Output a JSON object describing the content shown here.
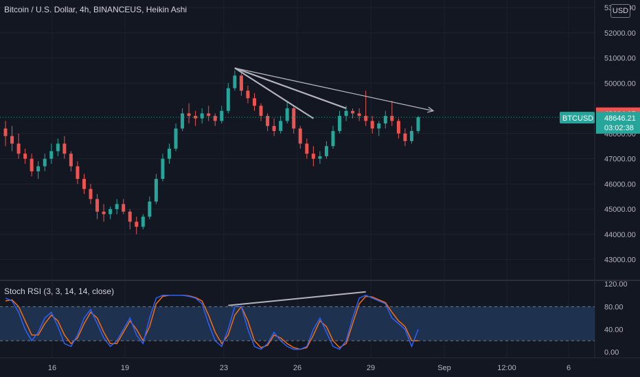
{
  "header": {
    "title": "Bitcoin / U.S. Dollar, 4h, BINANCEUS, Heikin Ashi",
    "currency": "USD"
  },
  "colors": {
    "background": "#131722",
    "grid": "#1e222d",
    "up": "#26a69a",
    "down": "#ef5350",
    "rsi_k": "#2962ff",
    "rsi_d": "#f7525f",
    "rsi_band": "#1e3250",
    "trendline": "#b2b5be"
  },
  "price_axis": {
    "ticks": [
      "53000.00",
      "52000.00",
      "51000.00",
      "50000.00",
      "48000.00",
      "47000.00",
      "46000.00",
      "45000.00",
      "44000.00",
      "43000.00"
    ],
    "top_label": "48664.95",
    "last_symbol": "BTCUSD",
    "last_price": "48646.21",
    "countdown": "03:02:38"
  },
  "rsi_panel": {
    "title": "Stoch RSI (3, 3, 14, 14, close)",
    "ticks": [
      "120.00",
      "80.00",
      "40.00",
      "0.00"
    ],
    "upper_band": 80,
    "lower_band": 20
  },
  "x_axis": {
    "ticks": [
      "16",
      "19",
      "23",
      "26",
      "29",
      "Sep",
      "12:00",
      "6"
    ]
  },
  "chart_data": {
    "type": "candlestick",
    "ylim": [
      42200,
      53300
    ],
    "series_ohlc": [
      [
        48200,
        48500,
        47500,
        47900
      ],
      [
        47900,
        48300,
        47300,
        47600
      ],
      [
        47600,
        48000,
        47000,
        47200
      ],
      [
        47200,
        47400,
        46800,
        47000
      ],
      [
        47000,
        47200,
        46300,
        46500
      ],
      [
        46500,
        46900,
        46200,
        46700
      ],
      [
        46700,
        47200,
        46500,
        47000
      ],
      [
        47000,
        47600,
        46800,
        47300
      ],
      [
        47300,
        47800,
        47100,
        47600
      ],
      [
        47600,
        47900,
        47000,
        47200
      ],
      [
        47200,
        47300,
        46500,
        46700
      ],
      [
        46700,
        46900,
        46000,
        46200
      ],
      [
        46200,
        46400,
        45600,
        45800
      ],
      [
        45800,
        46000,
        45200,
        45400
      ],
      [
        45400,
        45600,
        44600,
        44900
      ],
      [
        44900,
        45200,
        44500,
        44800
      ],
      [
        44800,
        45100,
        44600,
        45000
      ],
      [
        45000,
        45400,
        44800,
        45200
      ],
      [
        45200,
        45400,
        44800,
        44900
      ],
      [
        44900,
        45000,
        44200,
        44500
      ],
      [
        44500,
        44700,
        44000,
        44300
      ],
      [
        44300,
        44800,
        44200,
        44700
      ],
      [
        44700,
        45500,
        44600,
        45300
      ],
      [
        45300,
        46400,
        45200,
        46200
      ],
      [
        46200,
        47200,
        46100,
        47000
      ],
      [
        47000,
        47600,
        46800,
        47400
      ],
      [
        47400,
        48400,
        47300,
        48200
      ],
      [
        48200,
        49000,
        48100,
        48800
      ],
      [
        48800,
        49200,
        48400,
        48700
      ],
      [
        48700,
        48900,
        48300,
        48600
      ],
      [
        48600,
        49000,
        48400,
        48800
      ],
      [
        48800,
        49100,
        48500,
        48700
      ],
      [
        48700,
        48800,
        48300,
        48500
      ],
      [
        48500,
        49100,
        48400,
        48900
      ],
      [
        48900,
        50000,
        48800,
        49800
      ],
      [
        49800,
        50500,
        49700,
        50300
      ],
      [
        50300,
        50400,
        49500,
        49700
      ],
      [
        49700,
        49900,
        49200,
        49400
      ],
      [
        49400,
        49600,
        48900,
        49100
      ],
      [
        49100,
        49200,
        48500,
        48700
      ],
      [
        48700,
        48800,
        48100,
        48300
      ],
      [
        48300,
        48600,
        47900,
        48100
      ],
      [
        48100,
        48700,
        48000,
        48500
      ],
      [
        48500,
        49300,
        48400,
        49000
      ],
      [
        49000,
        49100,
        48000,
        48200
      ],
      [
        48200,
        48300,
        47400,
        47600
      ],
      [
        47600,
        47800,
        47000,
        47200
      ],
      [
        47200,
        47500,
        46700,
        47000
      ],
      [
        47000,
        47300,
        46800,
        47100
      ],
      [
        47100,
        47700,
        47000,
        47500
      ],
      [
        47500,
        48300,
        47400,
        48100
      ],
      [
        48100,
        48900,
        48000,
        48700
      ],
      [
        48700,
        49100,
        48500,
        48900
      ],
      [
        48900,
        49000,
        48600,
        48800
      ],
      [
        48800,
        49000,
        48500,
        48700
      ],
      [
        48700,
        49700,
        48300,
        48500
      ],
      [
        48500,
        48700,
        48000,
        48200
      ],
      [
        48200,
        48500,
        47900,
        48400
      ],
      [
        48400,
        48900,
        48200,
        48700
      ],
      [
        48700,
        49300,
        48300,
        48500
      ],
      [
        48500,
        48600,
        47800,
        48000
      ],
      [
        48000,
        48200,
        47500,
        47700
      ],
      [
        47700,
        48300,
        47600,
        48100
      ],
      [
        48100,
        48700,
        48000,
        48646
      ]
    ],
    "trendlines": [
      {
        "from": [
          35,
          50600
        ],
        "to": [
          63,
          48900
        ],
        "arrow": true
      },
      {
        "from": [
          35,
          50600
        ],
        "to": [
          52,
          49000
        ],
        "arrow": false
      },
      {
        "from": [
          35,
          50600
        ],
        "to": [
          47,
          48600
        ],
        "arrow": false
      }
    ],
    "stoch_rsi": {
      "k": [
        95,
        90,
        70,
        40,
        20,
        35,
        60,
        70,
        45,
        15,
        10,
        30,
        60,
        75,
        50,
        25,
        10,
        20,
        40,
        60,
        30,
        15,
        60,
        95,
        100,
        100,
        100,
        100,
        98,
        95,
        85,
        50,
        20,
        10,
        40,
        80,
        80,
        40,
        10,
        5,
        15,
        35,
        20,
        10,
        5,
        5,
        10,
        40,
        60,
        35,
        10,
        5,
        20,
        60,
        95,
        100,
        95,
        90,
        85,
        60,
        50,
        40,
        10,
        40
      ],
      "d": [
        90,
        92,
        80,
        55,
        30,
        30,
        50,
        65,
        55,
        30,
        15,
        25,
        50,
        70,
        60,
        35,
        15,
        15,
        35,
        55,
        40,
        20,
        45,
        85,
        98,
        100,
        100,
        100,
        99,
        96,
        90,
        65,
        35,
        15,
        30,
        65,
        80,
        55,
        20,
        8,
        12,
        30,
        25,
        15,
        8,
        5,
        8,
        30,
        55,
        45,
        20,
        8,
        15,
        50,
        85,
        98,
        97,
        92,
        87,
        70,
        55,
        45,
        20,
        20
      ],
      "ylim": [
        -10,
        125
      ]
    }
  }
}
